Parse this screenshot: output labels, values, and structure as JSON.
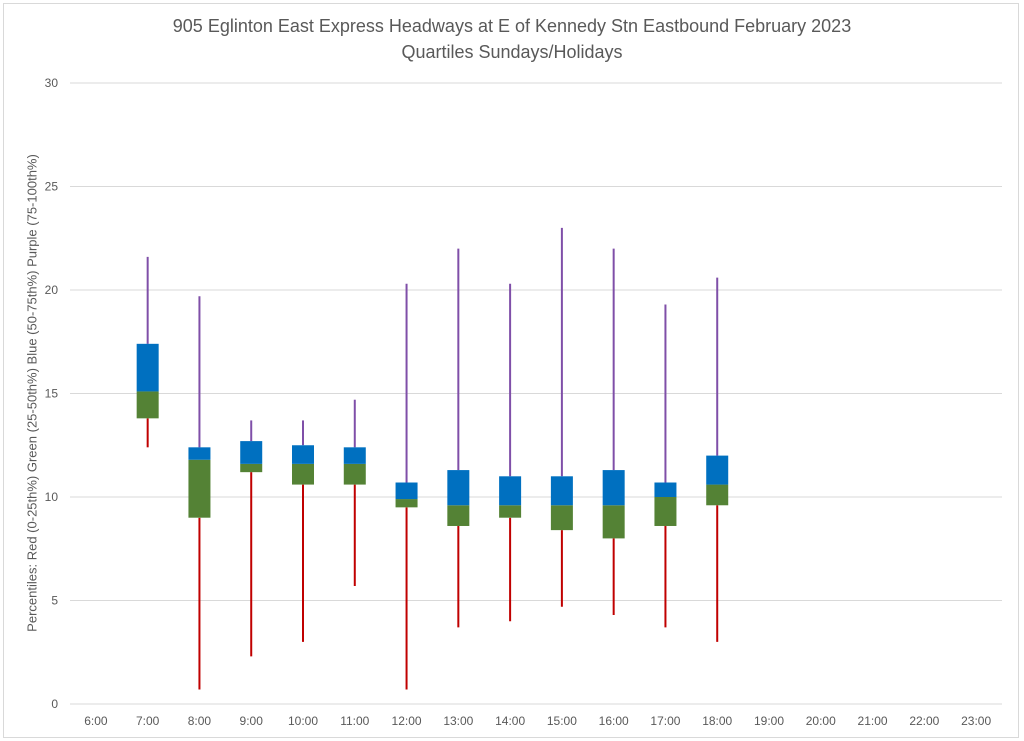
{
  "chart_data": {
    "type": "box",
    "title": "905 Eglinton East Express Headways at E of Kennedy Stn Eastbound February 2023",
    "subtitle": "Quartiles Sundays/Holidays",
    "xlabel": "",
    "ylabel": "Percentiles:  Red (0-25th%)  Green (25-50th%)  Blue (50-75th%)  Purple (75-100th%)",
    "ylim": [
      0,
      30
    ],
    "yticks": [
      0,
      5,
      10,
      15,
      20,
      25,
      30
    ],
    "grid": true,
    "categories": [
      "6:00",
      "7:00",
      "8:00",
      "9:00",
      "10:00",
      "11:00",
      "12:00",
      "13:00",
      "14:00",
      "15:00",
      "16:00",
      "17:00",
      "18:00",
      "19:00",
      "20:00",
      "21:00",
      "22:00",
      "23:00"
    ],
    "colors": {
      "min_to_q1": "#C00000",
      "q1_to_median": "#548235",
      "median_to_q3": "#0070C0",
      "q3_to_max": "#7F4FA8",
      "grid": "#d9d9d9",
      "text": "#595959"
    },
    "series": [
      {
        "category": "7:00",
        "min": 12.4,
        "q1": 13.8,
        "median": 15.1,
        "q3": 17.4,
        "max": 21.6
      },
      {
        "category": "8:00",
        "min": 0.7,
        "q1": 9.0,
        "median": 11.8,
        "q3": 12.4,
        "max": 19.7
      },
      {
        "category": "9:00",
        "min": 2.3,
        "q1": 11.2,
        "median": 11.6,
        "q3": 12.7,
        "max": 13.7
      },
      {
        "category": "10:00",
        "min": 3.0,
        "q1": 10.6,
        "median": 11.6,
        "q3": 12.5,
        "max": 13.7
      },
      {
        "category": "11:00",
        "min": 5.7,
        "q1": 10.6,
        "median": 11.6,
        "q3": 12.4,
        "max": 14.7
      },
      {
        "category": "12:00",
        "min": 0.7,
        "q1": 9.5,
        "median": 9.9,
        "q3": 10.7,
        "max": 20.3
      },
      {
        "category": "13:00",
        "min": 3.7,
        "q1": 8.6,
        "median": 9.6,
        "q3": 11.3,
        "max": 22.0
      },
      {
        "category": "14:00",
        "min": 4.0,
        "q1": 9.0,
        "median": 9.6,
        "q3": 11.0,
        "max": 20.3
      },
      {
        "category": "15:00",
        "min": 4.7,
        "q1": 8.4,
        "median": 9.6,
        "q3": 11.0,
        "max": 23.0
      },
      {
        "category": "16:00",
        "min": 4.3,
        "q1": 8.0,
        "median": 9.6,
        "q3": 11.3,
        "max": 22.0
      },
      {
        "category": "17:00",
        "min": 3.7,
        "q1": 8.6,
        "median": 10.0,
        "q3": 10.7,
        "max": 19.3
      },
      {
        "category": "18:00",
        "min": 3.0,
        "q1": 9.6,
        "median": 10.6,
        "q3": 12.0,
        "max": 20.6
      }
    ]
  }
}
